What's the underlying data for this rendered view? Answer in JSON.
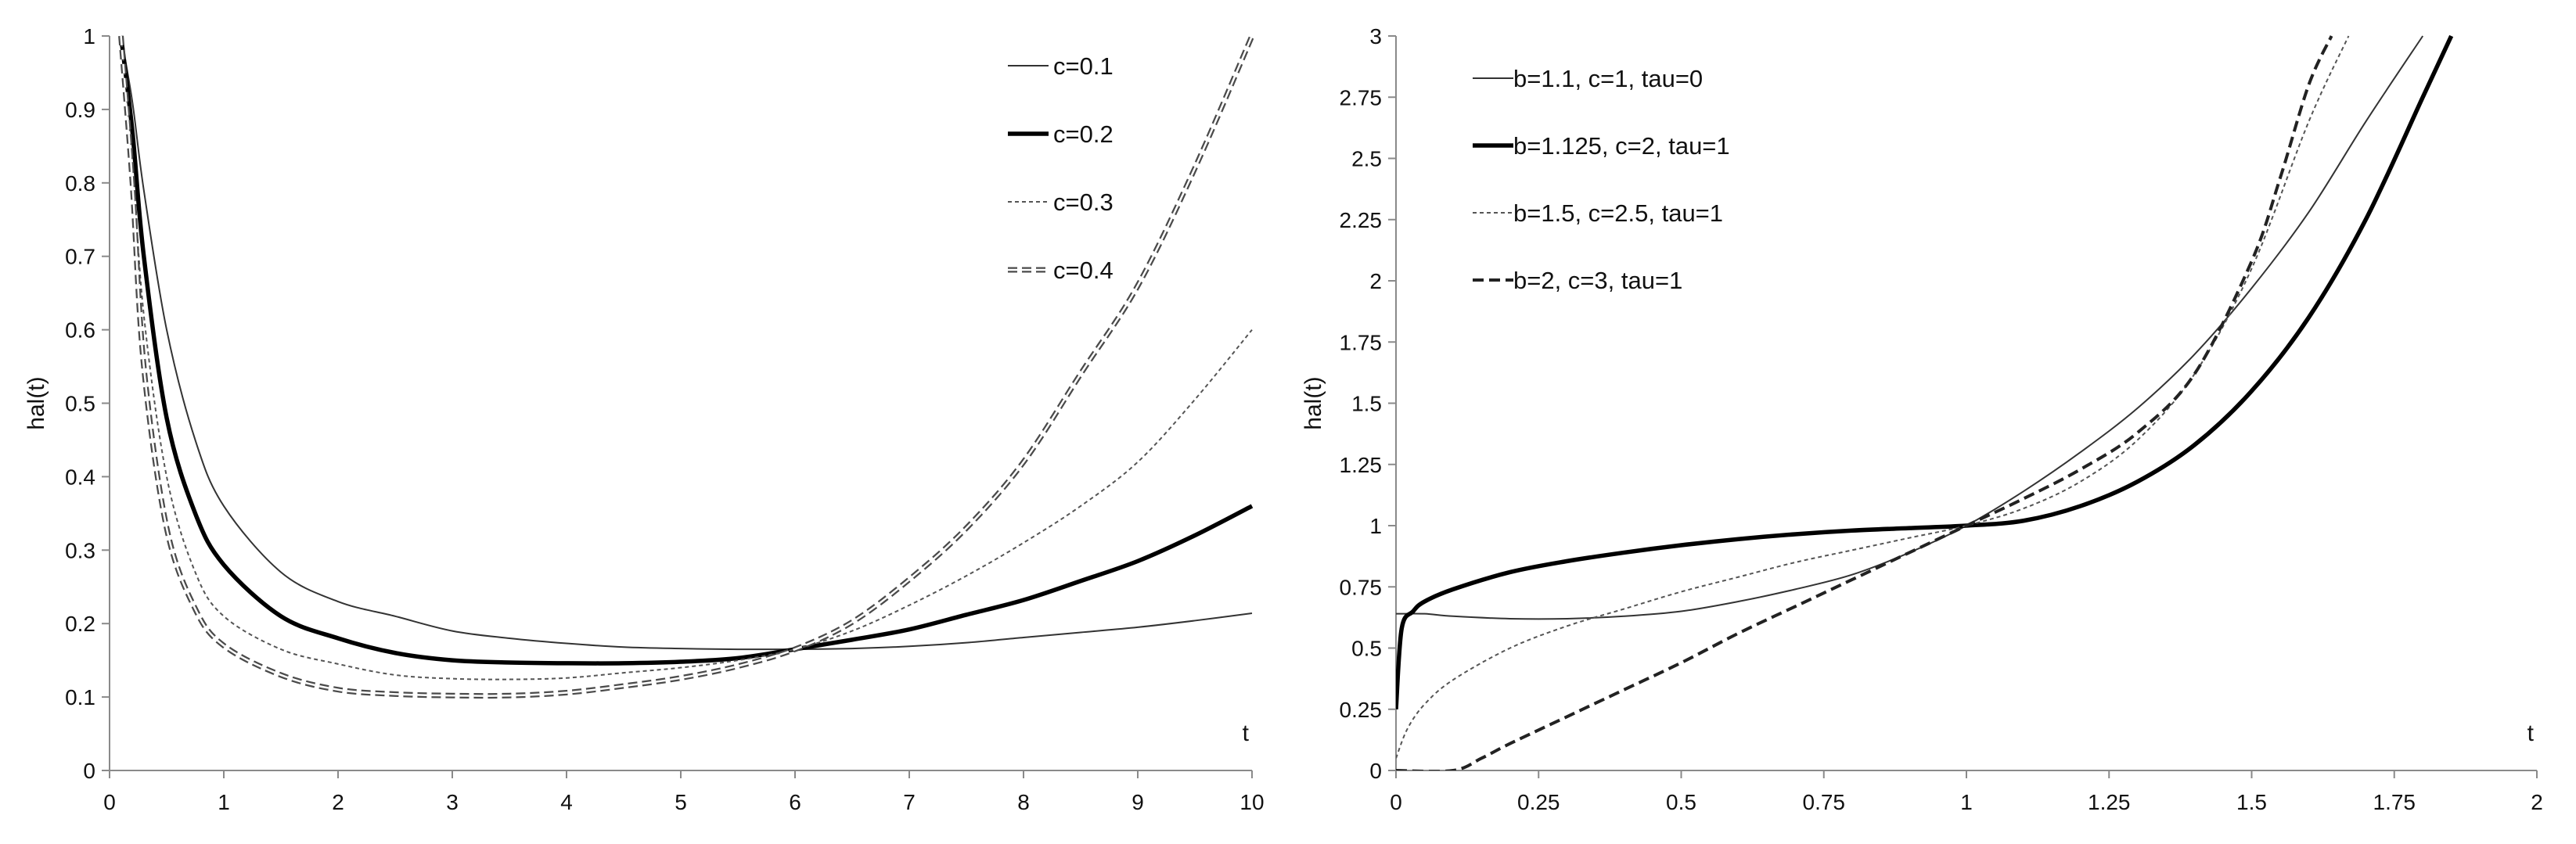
{
  "chart_data": [
    {
      "type": "line",
      "title": "",
      "xlabel": "t",
      "ylabel": "hal(t)",
      "xlim": [
        0,
        10
      ],
      "ylim": [
        0,
        1
      ],
      "xticks": [
        "0",
        "1",
        "2",
        "3",
        "4",
        "5",
        "6",
        "7",
        "8",
        "9",
        "10"
      ],
      "yticks": [
        "0",
        "0.1",
        "0.2",
        "0.3",
        "0.4",
        "0.5",
        "0.6",
        "0.7",
        "0.8",
        "0.9",
        "1"
      ],
      "grid": false,
      "legend_position": "top-right",
      "x": [
        0.1,
        0.2,
        0.3,
        0.5,
        0.75,
        1,
        1.5,
        2,
        2.5,
        3,
        3.5,
        4,
        4.5,
        5,
        5.5,
        6,
        6.5,
        7,
        7.5,
        8,
        8.5,
        9,
        9.5,
        10
      ],
      "series": [
        {
          "name": "c=0.1",
          "style": "thin-solid",
          "values": [
            1.0,
            0.91,
            0.79,
            0.6,
            0.45,
            0.36,
            0.27,
            0.23,
            0.21,
            0.19,
            0.18,
            0.173,
            0.168,
            0.166,
            0.165,
            0.165,
            0.166,
            0.169,
            0.174,
            0.181,
            0.188,
            0.195,
            0.204,
            0.214
          ]
        },
        {
          "name": "c=0.2",
          "style": "thick-solid",
          "values": [
            1.0,
            0.87,
            0.7,
            0.48,
            0.35,
            0.28,
            0.21,
            0.18,
            0.16,
            0.15,
            0.147,
            0.146,
            0.146,
            0.148,
            0.153,
            0.165,
            0.178,
            0.192,
            0.212,
            0.232,
            0.258,
            0.285,
            0.32,
            0.36
          ]
        },
        {
          "name": "c=0.3",
          "style": "thin-dotted",
          "values": [
            1.0,
            0.83,
            0.62,
            0.4,
            0.27,
            0.21,
            0.165,
            0.145,
            0.13,
            0.125,
            0.124,
            0.126,
            0.133,
            0.14,
            0.15,
            0.165,
            0.19,
            0.225,
            0.265,
            0.31,
            0.36,
            0.42,
            0.505,
            0.6
          ]
        },
        {
          "name": "c=0.4",
          "style": "double-dashed",
          "values": [
            1.0,
            0.8,
            0.55,
            0.33,
            0.22,
            0.17,
            0.13,
            0.11,
            0.104,
            0.102,
            0.102,
            0.106,
            0.115,
            0.126,
            0.142,
            0.165,
            0.202,
            0.26,
            0.33,
            0.42,
            0.54,
            0.66,
            0.82,
            1.0
          ]
        }
      ]
    },
    {
      "type": "line",
      "title": "",
      "xlabel": "t",
      "ylabel": "hal(t)",
      "xlim": [
        0,
        2
      ],
      "ylim": [
        0,
        3
      ],
      "xticks": [
        "0",
        "0.25",
        "0.5",
        "0.75",
        "1",
        "1.25",
        "1.5",
        "1.75",
        "2"
      ],
      "yticks": [
        "0",
        "0.25",
        "0.5",
        "0.75",
        "1",
        "1.25",
        "1.5",
        "1.75",
        "2",
        "2.25",
        "2.5",
        "2.75",
        "3"
      ],
      "grid": false,
      "legend_position": "top-left",
      "series": [
        {
          "name": "b=1.1, c=1, tau=0",
          "style": "thin-solid",
          "x": [
            0,
            0.05,
            0.1,
            0.2,
            0.3,
            0.4,
            0.5,
            0.6,
            0.7,
            0.8,
            0.9,
            1.0,
            1.1,
            1.2,
            1.3,
            1.4,
            1.5,
            1.6,
            1.7,
            1.8
          ],
          "values": [
            0.64,
            0.64,
            0.63,
            0.62,
            0.62,
            0.63,
            0.65,
            0.69,
            0.74,
            0.8,
            0.89,
            1.0,
            1.14,
            1.3,
            1.48,
            1.7,
            1.97,
            2.28,
            2.65,
            3.0
          ]
        },
        {
          "name": "b=1.125, c=2, tau=1",
          "style": "thick-solid",
          "x": [
            0,
            0.01,
            0.03,
            0.05,
            0.1,
            0.2,
            0.3,
            0.4,
            0.5,
            0.6,
            0.7,
            0.8,
            0.9,
            1.0,
            1.1,
            1.2,
            1.3,
            1.4,
            1.5,
            1.6,
            1.7,
            1.8,
            1.85
          ],
          "values": [
            0.25,
            0.58,
            0.65,
            0.69,
            0.74,
            0.81,
            0.855,
            0.89,
            0.92,
            0.945,
            0.965,
            0.98,
            0.99,
            1.0,
            1.02,
            1.08,
            1.18,
            1.33,
            1.55,
            1.85,
            2.25,
            2.75,
            3.0
          ]
        },
        {
          "name": "b=1.5, c=2.5, tau=1",
          "style": "thin-dotted",
          "x": [
            0,
            0.02,
            0.05,
            0.1,
            0.2,
            0.3,
            0.4,
            0.5,
            0.6,
            0.7,
            0.8,
            0.9,
            1.0,
            1.1,
            1.2,
            1.3,
            1.4,
            1.5,
            1.6,
            1.67
          ],
          "values": [
            0.05,
            0.17,
            0.27,
            0.37,
            0.5,
            0.59,
            0.66,
            0.73,
            0.79,
            0.85,
            0.9,
            0.95,
            1.0,
            1.07,
            1.18,
            1.35,
            1.62,
            2.05,
            2.65,
            3.0
          ]
        },
        {
          "name": "b=2, c=3, tau=1",
          "style": "dashed",
          "x": [
            0,
            0.1,
            0.15,
            0.2,
            0.3,
            0.4,
            0.5,
            0.6,
            0.7,
            0.8,
            0.9,
            1.0,
            1.1,
            1.2,
            1.3,
            1.4,
            1.5,
            1.55,
            1.6,
            1.64
          ],
          "values": [
            0,
            0,
            0.05,
            0.11,
            0.22,
            0.33,
            0.44,
            0.56,
            0.67,
            0.78,
            0.89,
            1.0,
            1.11,
            1.23,
            1.38,
            1.62,
            2.08,
            2.42,
            2.8,
            3.0
          ]
        }
      ]
    }
  ]
}
